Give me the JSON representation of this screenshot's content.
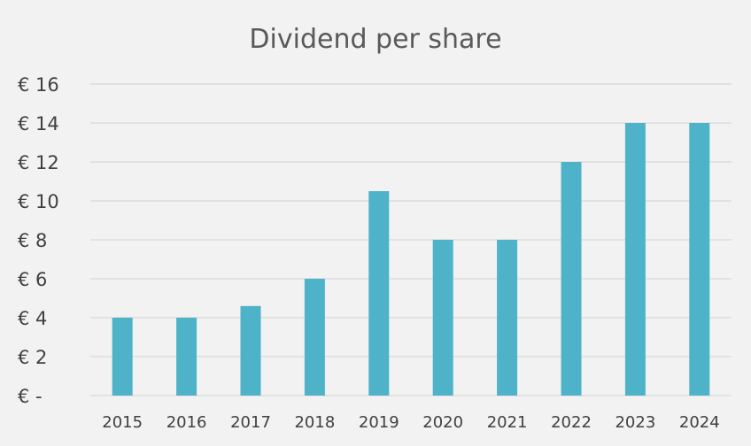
{
  "chart_data": {
    "type": "bar",
    "title": "Dividend per share",
    "xlabel": "",
    "ylabel": "",
    "categories": [
      "2015",
      "2016",
      "2017",
      "2018",
      "2019",
      "2020",
      "2021",
      "2022",
      "2023",
      "2024"
    ],
    "values": [
      4,
      4,
      4.6,
      6,
      10.5,
      8,
      8,
      12,
      14,
      14
    ],
    "ylim": [
      0,
      16
    ],
    "yticks": [
      0,
      2,
      4,
      6,
      8,
      10,
      12,
      14,
      16
    ],
    "ytick_labels": [
      "€ -",
      "€ 2",
      "€ 4",
      "€ 6",
      "€ 8",
      "€ 10",
      "€ 12",
      "€ 14",
      "€ 16"
    ],
    "grid": true,
    "legend": false,
    "bar_color": "#4eb3c8",
    "grid_color": "#d9d9d9",
    "background": "#f2f2f2"
  }
}
